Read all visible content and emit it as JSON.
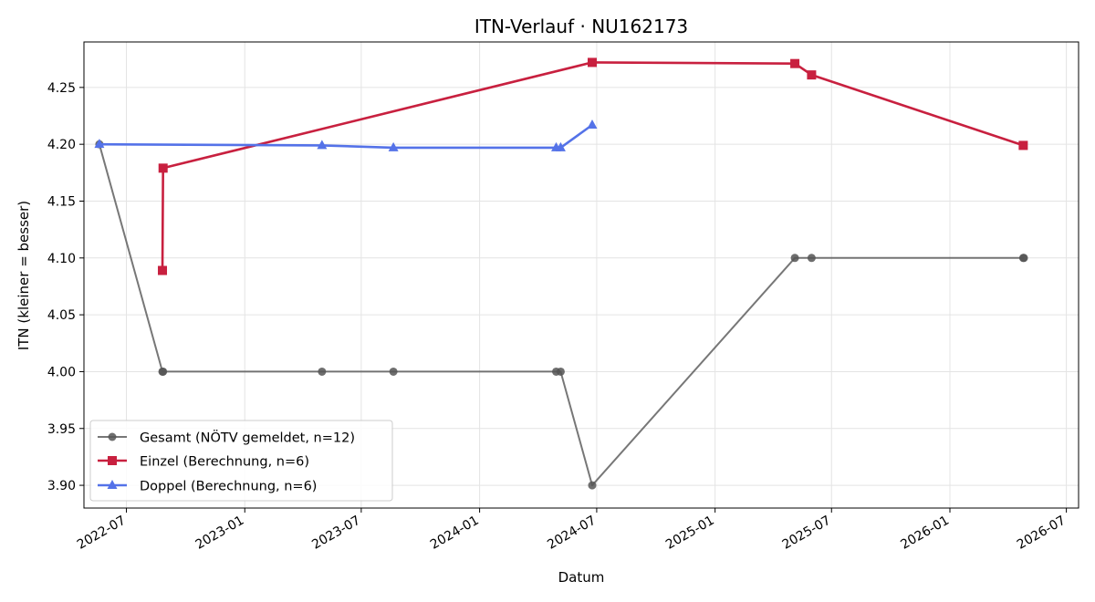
{
  "chart_data": {
    "type": "line",
    "title": "ITN-Verlauf · NU162173",
    "xlabel": "Datum",
    "ylabel": "ITN  (kleiner = besser)",
    "x_axis": {
      "type": "date",
      "range": [
        "2022-04-26",
        "2026-07-20"
      ],
      "ticks": [
        "2022-07-01",
        "2023-01-01",
        "2023-07-01",
        "2024-01-01",
        "2024-07-01",
        "2025-01-01",
        "2025-07-01",
        "2026-01-01",
        "2026-07-01"
      ],
      "tick_labels": [
        "2022-07",
        "2023-01",
        "2023-07",
        "2024-01",
        "2024-07",
        "2025-01",
        "2025-07",
        "2026-01",
        "2026-07"
      ]
    },
    "y_axis": {
      "range": [
        3.88,
        4.29
      ],
      "ticks": [
        3.9,
        3.95,
        4.0,
        4.05,
        4.1,
        4.15,
        4.2,
        4.25
      ],
      "tick_labels": [
        "3.90",
        "3.95",
        "4.00",
        "4.05",
        "4.10",
        "4.15",
        "4.20",
        "4.25"
      ]
    },
    "grid": true,
    "legend_position": "lower-left",
    "series": [
      {
        "name": "Gesamt (NÖTV gemeldet, n=12)",
        "color": "#555555",
        "marker": "circle",
        "points": [
          [
            "2022-05-20",
            4.2
          ],
          [
            "2022-08-26",
            4.0
          ],
          [
            "2022-08-27",
            4.0
          ],
          [
            "2023-05-01",
            4.0
          ],
          [
            "2023-08-20",
            4.0
          ],
          [
            "2024-04-29",
            4.0
          ],
          [
            "2024-05-06",
            4.0
          ],
          [
            "2024-06-24",
            3.9
          ],
          [
            "2025-05-05",
            4.1
          ],
          [
            "2025-05-31",
            4.1
          ],
          [
            "2026-04-25",
            4.1
          ],
          [
            "2026-04-26",
            4.1
          ]
        ]
      },
      {
        "name": "Einzel (Berechnung, n=6)",
        "color": "#c8203f",
        "marker": "square",
        "points": [
          [
            "2022-08-26",
            4.089
          ],
          [
            "2022-08-27",
            4.179
          ],
          [
            "2024-06-24",
            4.272
          ],
          [
            "2025-05-05",
            4.271
          ],
          [
            "2025-05-31",
            4.261
          ],
          [
            "2026-04-25",
            4.199
          ]
        ]
      },
      {
        "name": "Doppel (Berechnung, n=6)",
        "color": "#5472e8",
        "marker": "triangle",
        "points": [
          [
            "2022-05-20",
            4.2
          ],
          [
            "2023-05-01",
            4.199
          ],
          [
            "2023-08-20",
            4.197
          ],
          [
            "2024-04-29",
            4.197
          ],
          [
            "2024-05-06",
            4.197
          ],
          [
            "2024-06-24",
            4.217
          ]
        ]
      }
    ]
  }
}
